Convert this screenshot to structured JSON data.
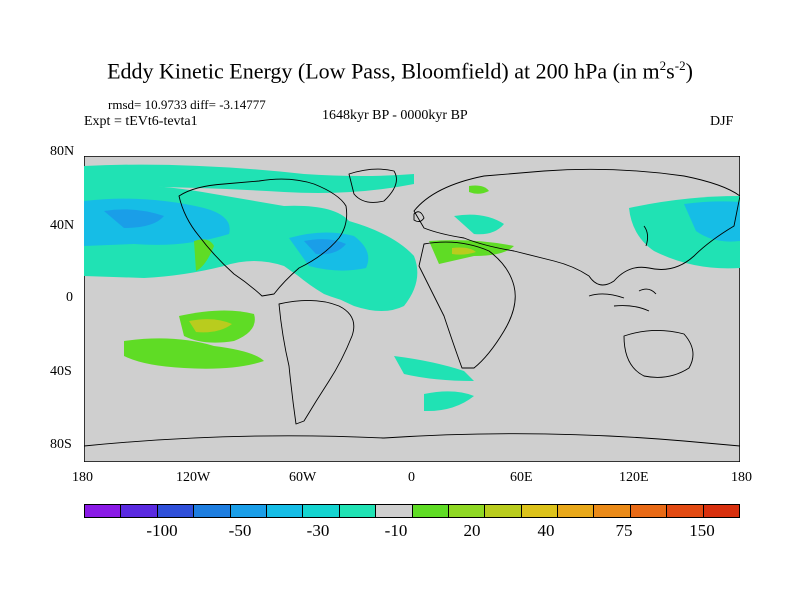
{
  "title": {
    "prefix": "Eddy Kinetic Energy (Low Pass, Bloomfield) at 200 hPa (in m",
    "sup1": "2",
    "mid": "s",
    "sup2": "-2",
    "suffix": ")"
  },
  "stats": "rmsd= 10.9733  diff= -3.14777",
  "experiment": "Expt = tEVt6-tevta1",
  "period": "1648kyr BP - 0000kyr BP",
  "season": "DJF",
  "lat_ticks": [
    "80N",
    "40N",
    "0",
    "40S",
    "80S"
  ],
  "lon_ticks": [
    "180",
    "120W",
    "60W",
    "0",
    "60E",
    "120E",
    "180"
  ],
  "colorbar": {
    "colors": [
      "#8a1ae6",
      "#5a2ae0",
      "#2f4fd9",
      "#1e7ee0",
      "#1a9ee8",
      "#16bde6",
      "#14d4d0",
      "#20e2b4",
      "#cfcfcf",
      "#5fdc25",
      "#8fd824",
      "#b9cc1e",
      "#dcc21a",
      "#e8a81a",
      "#ea8a18",
      "#e86a16",
      "#e24a12",
      "#d8300e"
    ],
    "labels": [
      "-100",
      "-50",
      "-30",
      "-10",
      "20",
      "40",
      "75",
      "150"
    ]
  }
}
